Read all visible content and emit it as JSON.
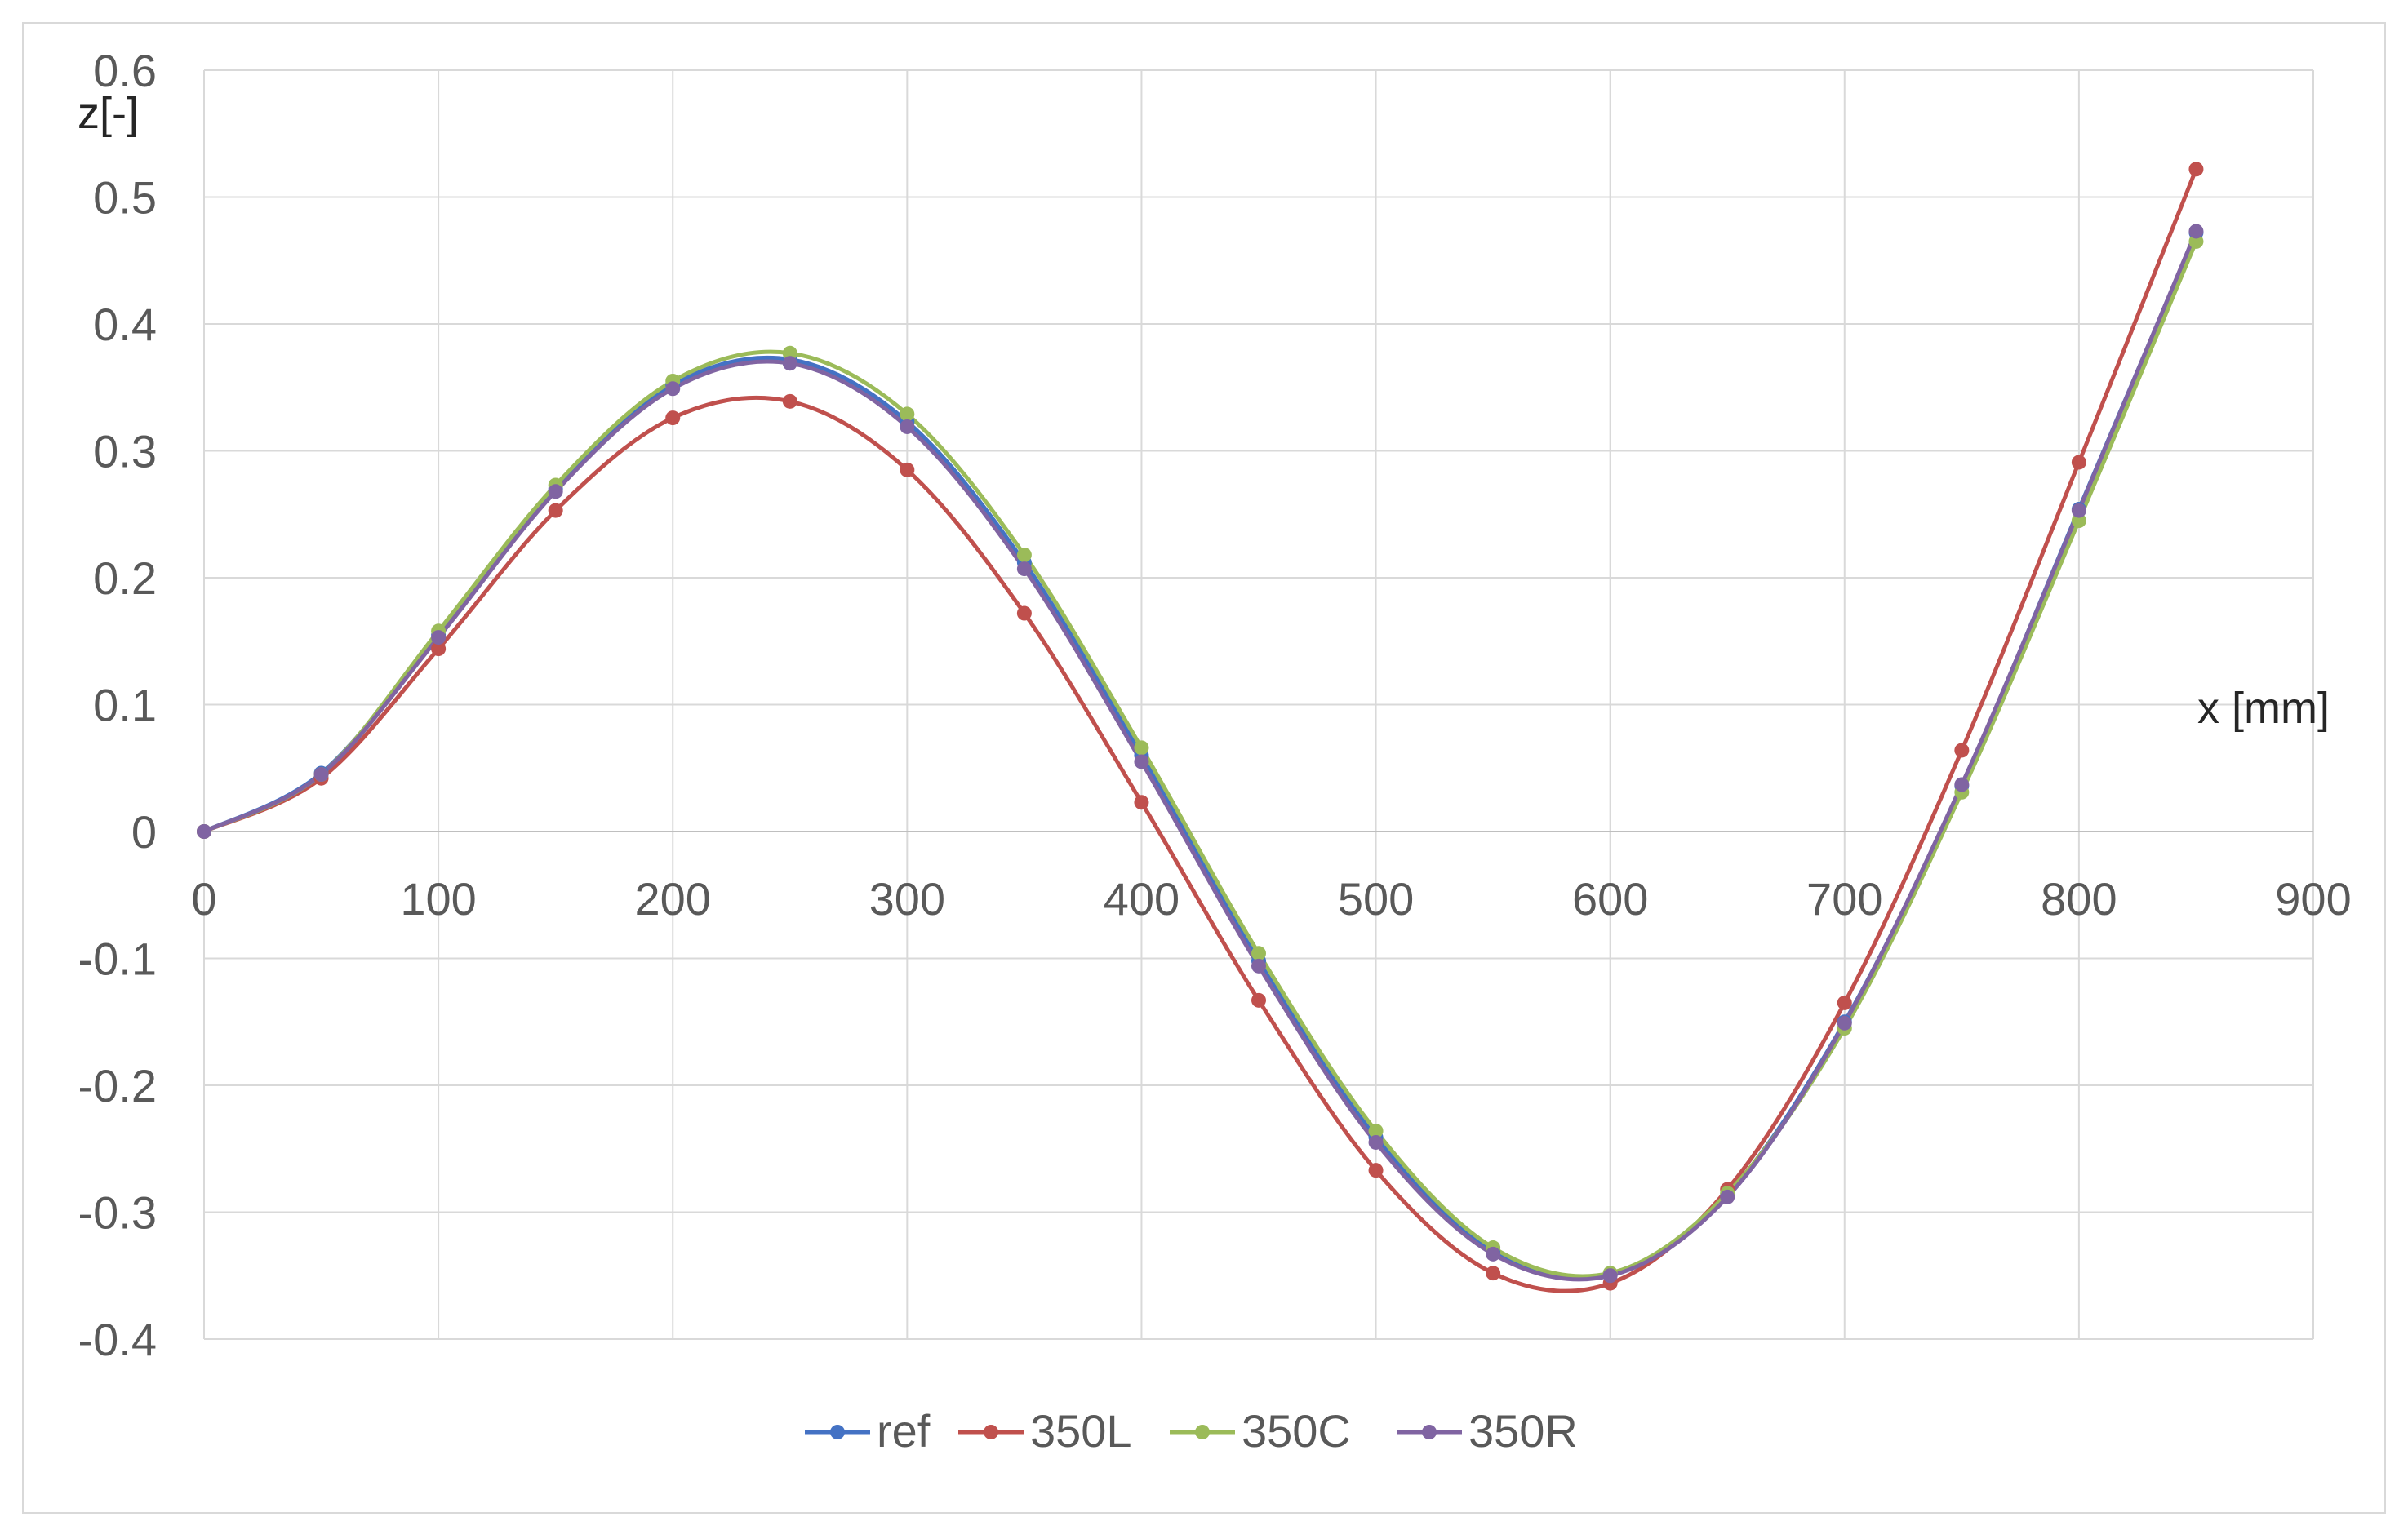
{
  "chart_data": {
    "type": "line",
    "xlabel": "x [mm]",
    "ylabel": "z[-]",
    "xlim": [
      0,
      900
    ],
    "ylim": [
      -0.4,
      0.6
    ],
    "xticks": [
      0,
      100,
      200,
      300,
      400,
      500,
      600,
      700,
      800,
      900
    ],
    "yticks": [
      0.6,
      0.5,
      0.4,
      0.3,
      0.2,
      0.1,
      0,
      -0.1,
      -0.2,
      -0.3,
      -0.4
    ],
    "grid": true,
    "legend": "bottom",
    "x": [
      0,
      50,
      100,
      150,
      200,
      250,
      300,
      350,
      400,
      450,
      500,
      550,
      600,
      650,
      700,
      750,
      800,
      850
    ],
    "series": [
      {
        "name": "ref",
        "color": "#4472c4",
        "values": [
          0,
          0.046,
          0.155,
          0.27,
          0.352,
          0.372,
          0.323,
          0.212,
          0.06,
          -0.102,
          -0.241,
          -0.331,
          -0.349,
          -0.286,
          -0.15,
          0.036,
          0.254,
          0.472
        ]
      },
      {
        "name": "350L",
        "color": "#c0504d",
        "values": [
          0,
          0.042,
          0.144,
          0.253,
          0.326,
          0.339,
          0.285,
          0.172,
          0.023,
          -0.133,
          -0.267,
          -0.348,
          -0.356,
          -0.282,
          -0.135,
          0.064,
          0.291,
          0.522
        ]
      },
      {
        "name": "350C",
        "color": "#9bbb59",
        "values": [
          0,
          0.045,
          0.158,
          0.273,
          0.355,
          0.377,
          0.329,
          0.218,
          0.066,
          -0.096,
          -0.236,
          -0.328,
          -0.348,
          -0.285,
          -0.155,
          0.031,
          0.245,
          0.465
        ]
      },
      {
        "name": "350R",
        "color": "#8064a2",
        "values": [
          0,
          0.045,
          0.153,
          0.268,
          0.349,
          0.369,
          0.319,
          0.207,
          0.055,
          -0.106,
          -0.245,
          -0.333,
          -0.35,
          -0.288,
          -0.151,
          0.037,
          0.253,
          0.473
        ]
      }
    ]
  }
}
